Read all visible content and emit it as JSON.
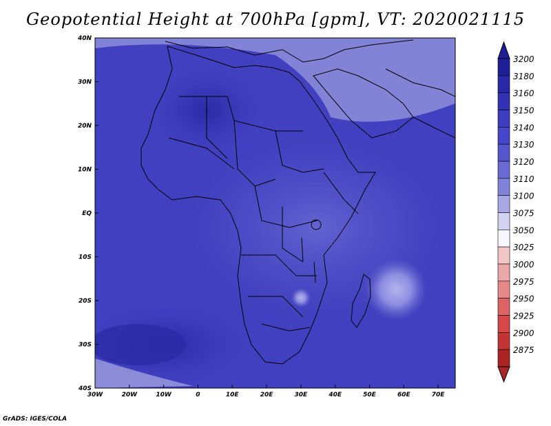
{
  "title": "Geopotential Height at 700hPa [gpm], VT: 2020021115",
  "credit": "GrADS: IGES/COLA",
  "map": {
    "lat_labels": [
      "40N",
      "30N",
      "20N",
      "10N",
      "EQ",
      "10S",
      "20S",
      "30S",
      "40S"
    ],
    "lon_labels": [
      "30W",
      "20W",
      "10W",
      "0",
      "10E",
      "20E",
      "30E",
      "40E",
      "50E",
      "60E",
      "70E"
    ]
  },
  "colorbar": {
    "levels": [
      "3200",
      "3180",
      "3160",
      "3150",
      "3140",
      "3130",
      "3120",
      "3110",
      "3100",
      "3075",
      "3050",
      "3025",
      "3000",
      "2975",
      "2950",
      "2925",
      "2900",
      "2875"
    ],
    "colors": [
      "#1e1e96",
      "#2828a8",
      "#3232b4",
      "#3c3cbe",
      "#4646c8",
      "#5656cc",
      "#6a6ad2",
      "#8282da",
      "#a8a8e6",
      "#d2d2f2",
      "#f7f7ff",
      "#f2c6c6",
      "#eca8a8",
      "#e48888",
      "#dc6464",
      "#d44848",
      "#c43434",
      "#aa2424"
    ]
  }
}
